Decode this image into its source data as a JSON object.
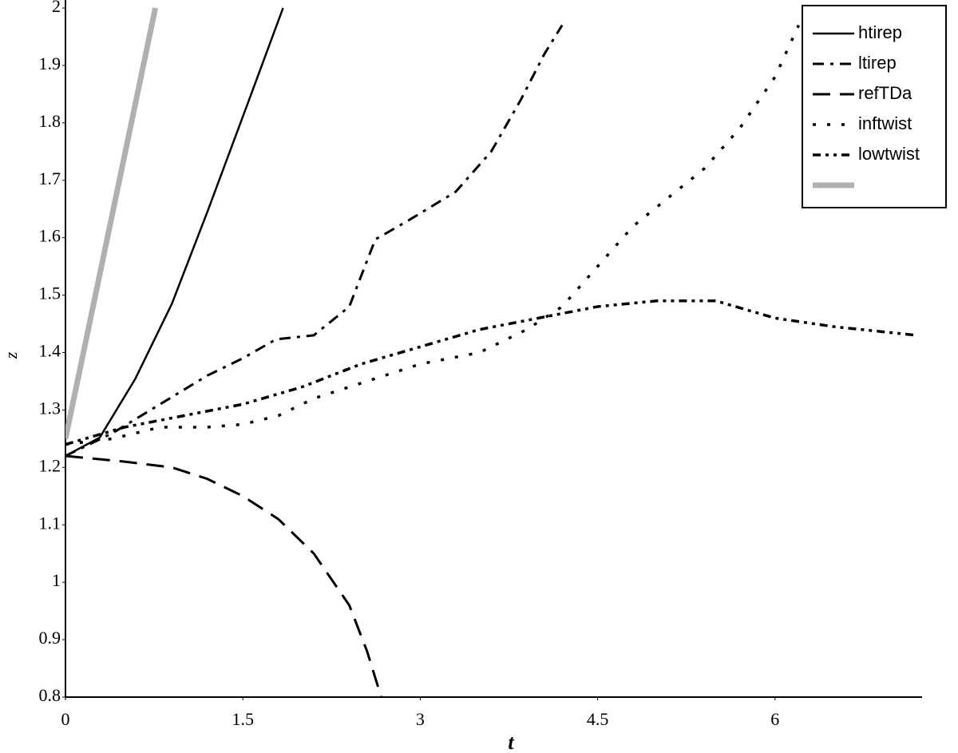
{
  "chart_data": {
    "type": "line",
    "xlabel": "t",
    "ylabel": "z",
    "xlim": [
      0,
      7.23
    ],
    "ylim": [
      0.8,
      2
    ],
    "xticks": [
      0,
      1.5,
      3,
      4.5,
      6
    ],
    "yticks": [
      0.8,
      0.9,
      1,
      1.1,
      1.2,
      1.3,
      1.4,
      1.5,
      1.6,
      1.7,
      1.8,
      1.9,
      2
    ],
    "grid": false,
    "legend": "upper right",
    "series": [
      {
        "name": "htirep",
        "color": "#000000",
        "linestyle": "solid",
        "linewidth": 2.5,
        "x": [
          0,
          0.29,
          0.59,
          0.9,
          1.2,
          1.54,
          1.84
        ],
        "values": [
          1.22,
          1.252,
          1.354,
          1.485,
          1.645,
          1.833,
          2.0
        ]
      },
      {
        "name": "ltirep",
        "color": "#000000",
        "linestyle": "dashdot",
        "linewidth": 3,
        "x": [
          0,
          0.4,
          0.8,
          1.2,
          1.5,
          1.78,
          2.1,
          2.4,
          2.62,
          2.9,
          3.3,
          3.6,
          3.85,
          4.05,
          4.2
        ],
        "values": [
          1.22,
          1.26,
          1.31,
          1.36,
          1.39,
          1.423,
          1.43,
          1.48,
          1.597,
          1.63,
          1.68,
          1.75,
          1.84,
          1.92,
          1.97
        ]
      },
      {
        "name": "refTDa",
        "color": "#000000",
        "linestyle": "dashed",
        "linewidth": 3,
        "x": [
          0,
          0.5,
          0.9,
          1.2,
          1.5,
          1.8,
          2.1,
          2.4,
          2.55,
          2.67
        ],
        "values": [
          1.22,
          1.21,
          1.2,
          1.18,
          1.15,
          1.11,
          1.05,
          0.96,
          0.88,
          0.8
        ]
      },
      {
        "name": "inftwist",
        "color": "#000000",
        "linestyle": "dotted",
        "linewidth": 3.5,
        "x": [
          0,
          0.4,
          0.8,
          1.2,
          1.5,
          1.8,
          2.1,
          2.4,
          2.7,
          3.0,
          3.5,
          3.9,
          4.2,
          4.5,
          4.8,
          5.1,
          5.4,
          5.7,
          6.0,
          6.2
        ],
        "values": [
          1.24,
          1.25,
          1.27,
          1.27,
          1.275,
          1.29,
          1.32,
          1.34,
          1.36,
          1.38,
          1.4,
          1.44,
          1.48,
          1.55,
          1.62,
          1.67,
          1.72,
          1.79,
          1.88,
          1.97
        ]
      },
      {
        "name": "lowtwist",
        "color": "#000000",
        "linestyle": "dashdotdot",
        "linewidth": 3.5,
        "x": [
          0,
          0.5,
          1.0,
          1.5,
          2.0,
          2.5,
          3.0,
          3.5,
          4.0,
          4.5,
          5.0,
          5.5,
          6.0,
          6.5,
          7.2
        ],
        "values": [
          1.24,
          1.27,
          1.29,
          1.31,
          1.34,
          1.38,
          1.41,
          1.44,
          1.46,
          1.48,
          1.49,
          1.49,
          1.46,
          1.445,
          1.43
        ]
      },
      {
        "color": "#b0b0b0",
        "linestyle": "solid",
        "linewidth": 7,
        "x": [
          0,
          0.76
        ],
        "values": [
          1.25,
          2.0
        ]
      }
    ]
  }
}
